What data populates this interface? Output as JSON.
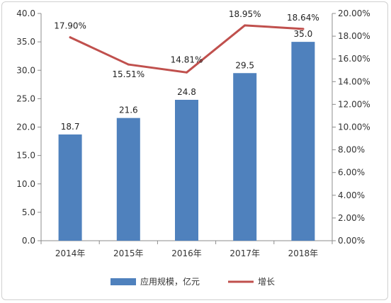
{
  "chart_data": {
    "type": "bar",
    "categories": [
      "2014年",
      "2015年",
      "2016年",
      "2017年",
      "2018年"
    ],
    "series": [
      {
        "name": "应用规模，亿元",
        "type": "bar",
        "axis": "left",
        "values": [
          18.7,
          21.6,
          24.8,
          29.5,
          35.0
        ],
        "labels": [
          "18.7",
          "21.6",
          "24.8",
          "29.5",
          "35.0"
        ],
        "color": "#4f81bd"
      },
      {
        "name": "增长",
        "type": "line",
        "axis": "right",
        "values": [
          17.9,
          15.51,
          14.81,
          18.95,
          18.64
        ],
        "labels": [
          "17.90%",
          "15.51%",
          "14.81%",
          "18.95%",
          "18.64%"
        ],
        "color": "#c0504d"
      }
    ],
    "y_left": {
      "range": [
        0,
        40
      ],
      "ticks": [
        "0.0",
        "5.0",
        "10.0",
        "15.0",
        "20.0",
        "25.0",
        "30.0",
        "35.0",
        "40.0"
      ]
    },
    "y_right": {
      "range": [
        0,
        20
      ],
      "ticks": [
        "0.00%",
        "2.00%",
        "4.00%",
        "6.00%",
        "8.00%",
        "10.00%",
        "12.00%",
        "14.00%",
        "16.00%",
        "18.00%",
        "20.00%"
      ]
    },
    "grid": false,
    "legend": "bottom"
  }
}
